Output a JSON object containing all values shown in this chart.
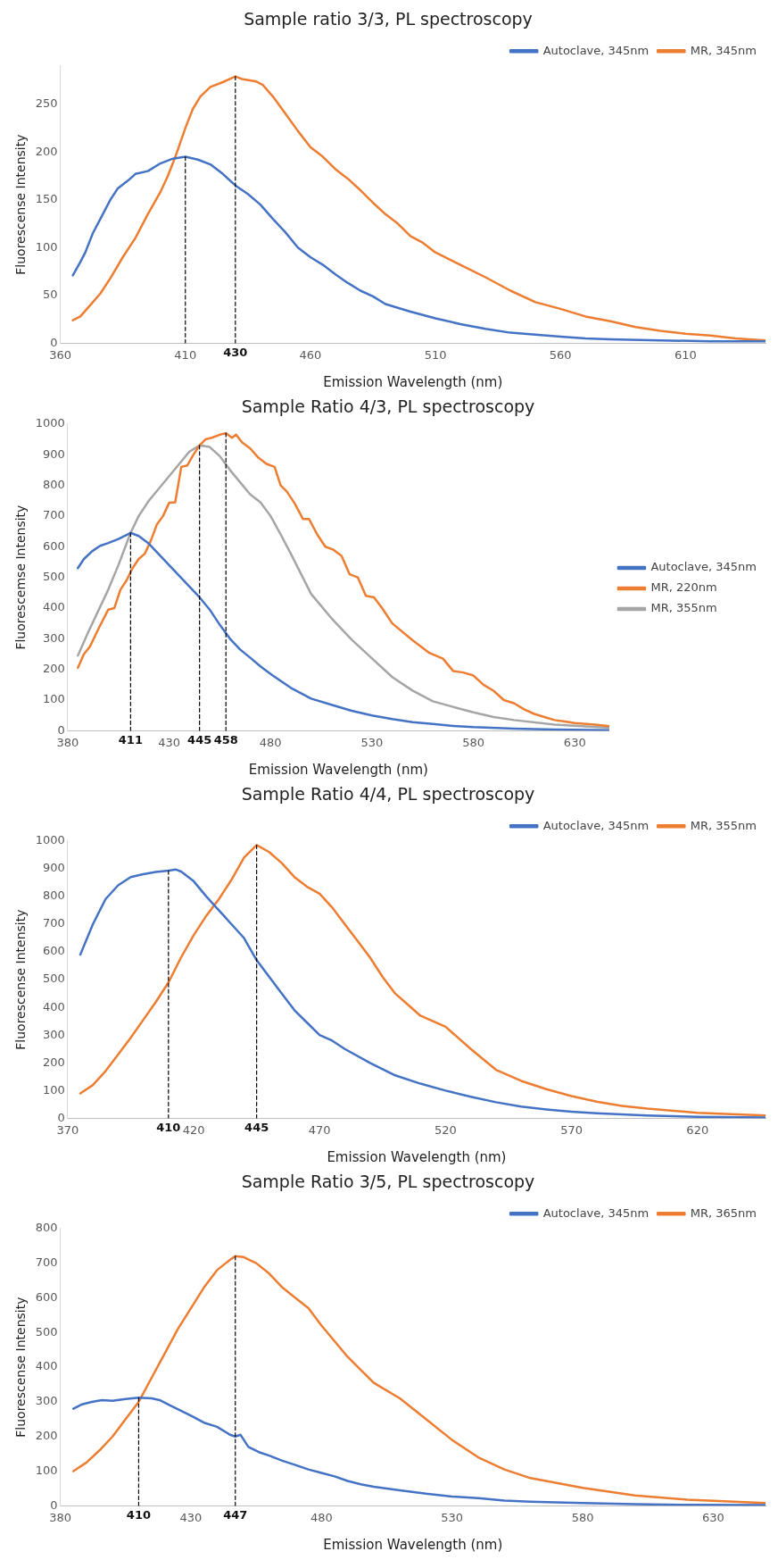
{
  "chart_data": [
    {
      "type": "line",
      "title": "Sample ratio 3/3, PL spectroscopy",
      "xlabel": "Emission Wavelength (nm)",
      "ylabel": "Fluorescense Intensity",
      "xlim": [
        360,
        642
      ],
      "xticks": [
        360,
        410,
        460,
        510,
        560,
        610
      ],
      "ylim": [
        0,
        290
      ],
      "yticks": [
        0,
        50,
        100,
        150,
        200,
        250
      ],
      "legend": "top right",
      "marker": "none",
      "series": [
        {
          "name": "Autoclave, 345nm",
          "color": "#4472c4",
          "x": [
            365,
            368,
            370,
            373,
            377,
            380,
            383,
            387,
            390,
            395,
            400,
            405,
            410,
            415,
            420,
            425,
            430,
            435,
            440,
            445,
            450,
            455,
            460,
            465,
            470,
            475,
            480,
            485,
            490,
            500,
            510,
            520,
            530,
            540,
            550,
            560,
            570,
            580,
            600,
            620,
            642
          ],
          "values": [
            71,
            85,
            95,
            115,
            135,
            150,
            162,
            170,
            177,
            180,
            188,
            193,
            195,
            192,
            187,
            177,
            165,
            156,
            145,
            130,
            116,
            100,
            90,
            82,
            72,
            63,
            55,
            49,
            41,
            33,
            26,
            20,
            15,
            11,
            9,
            7,
            5,
            4,
            3,
            2,
            2
          ]
        },
        {
          "name": "MR, 345nm",
          "color": "#ed7d31",
          "x": [
            365,
            368,
            372,
            376,
            380,
            385,
            390,
            395,
            400,
            403,
            406,
            410,
            413,
            416,
            420,
            425,
            430,
            433,
            438,
            441,
            445,
            450,
            455,
            460,
            465,
            470,
            475,
            480,
            485,
            490,
            495,
            500,
            505,
            510,
            520,
            530,
            540,
            550,
            560,
            570,
            580,
            590,
            600,
            610,
            620,
            630,
            642
          ],
          "values": [
            24,
            28,
            40,
            52,
            68,
            90,
            110,
            135,
            158,
            175,
            195,
            225,
            245,
            258,
            268,
            273,
            279,
            276,
            274,
            270,
            258,
            240,
            222,
            205,
            195,
            182,
            172,
            160,
            147,
            135,
            125,
            112,
            105,
            95,
            82,
            69,
            55,
            43,
            36,
            28,
            23,
            17,
            13,
            10,
            8,
            5,
            3
          ]
        },
        {
          "color": "#000000",
          "line_style": "dashed",
          "x": [
            410,
            410
          ],
          "values": [
            0,
            195
          ]
        },
        {
          "color": "#000000",
          "line_style": "dashed",
          "x": [
            430,
            430
          ],
          "values": [
            0,
            279
          ]
        }
      ],
      "annotations": [
        {
          "text": "430",
          "x": 430,
          "y": 0
        }
      ]
    },
    {
      "type": "line",
      "title": "Sample Ratio 4/3, PL spectroscopy",
      "xlabel": "Emission Wavelength (nm)",
      "ylabel": "Fluorescemse Intensity",
      "xlim": [
        380,
        647
      ],
      "xticks": [
        380,
        430,
        480,
        530,
        580,
        630
      ],
      "ylim": [
        0,
        1000
      ],
      "yticks": [
        0,
        100,
        200,
        300,
        400,
        500,
        600,
        700,
        800,
        900,
        1000
      ],
      "legend": "right",
      "marker": "none",
      "series": [
        {
          "name": "Autoclave, 345nm",
          "color": "#4472c4",
          "x": [
            385,
            388,
            392,
            396,
            400,
            405,
            411,
            415,
            420,
            425,
            430,
            435,
            440,
            445,
            450,
            455,
            460,
            465,
            470,
            475,
            480,
            490,
            500,
            510,
            520,
            530,
            540,
            550,
            560,
            570,
            580,
            600,
            620,
            647
          ],
          "values": [
            530,
            560,
            585,
            603,
            612,
            625,
            645,
            635,
            610,
            575,
            540,
            505,
            470,
            435,
            395,
            345,
            300,
            265,
            238,
            210,
            185,
            140,
            105,
            85,
            65,
            50,
            38,
            28,
            22,
            16,
            12,
            7,
            4,
            2
          ]
        },
        {
          "name": "MR, 220nm",
          "color": "#ed7d31",
          "x": [
            385,
            388,
            391,
            395,
            400,
            403,
            406,
            409,
            412,
            415,
            418,
            421,
            424,
            427,
            430,
            433,
            436,
            439,
            442,
            445,
            448,
            451,
            455,
            458,
            461,
            463,
            466,
            470,
            474,
            478,
            482,
            485,
            488,
            492,
            496,
            499,
            503,
            507,
            511,
            515,
            519,
            523,
            527,
            531,
            535,
            540,
            550,
            558,
            565,
            570,
            575,
            580,
            585,
            590,
            595,
            600,
            605,
            610,
            615,
            620,
            625,
            630,
            640,
            647
          ],
          "values": [
            205,
            250,
            275,
            330,
            395,
            400,
            460,
            490,
            530,
            560,
            577,
            620,
            673,
            700,
            743,
            745,
            860,
            865,
            900,
            930,
            950,
            955,
            965,
            970,
            955,
            965,
            940,
            920,
            890,
            870,
            860,
            800,
            780,
            740,
            690,
            690,
            640,
            600,
            590,
            570,
            510,
            500,
            440,
            435,
            400,
            350,
            295,
            255,
            235,
            195,
            190,
            180,
            150,
            130,
            100,
            90,
            70,
            55,
            45,
            35,
            30,
            25,
            20,
            15
          ]
        },
        {
          "name": "MR, 355nm",
          "color": "#a5a5a5",
          "x": [
            385,
            390,
            395,
            400,
            405,
            411,
            415,
            420,
            425,
            430,
            435,
            440,
            445,
            450,
            455,
            460,
            465,
            470,
            475,
            480,
            485,
            490,
            500,
            510,
            520,
            530,
            540,
            550,
            560,
            570,
            580,
            590,
            600,
            620,
            647
          ],
          "values": [
            245,
            320,
            390,
            460,
            540,
            645,
            700,
            750,
            790,
            830,
            870,
            910,
            930,
            925,
            895,
            850,
            810,
            770,
            745,
            700,
            640,
            577,
            446,
            367,
            297,
            236,
            175,
            131,
            96,
            78,
            60,
            45,
            35,
            20,
            10
          ]
        },
        {
          "color": "#000000",
          "line_style": "dashed",
          "x": [
            411,
            411
          ],
          "values": [
            0,
            645
          ]
        },
        {
          "color": "#000000",
          "line_style": "dashed",
          "x": [
            445,
            445
          ],
          "values": [
            0,
            930
          ]
        },
        {
          "color": "#000000",
          "line_style": "dashed",
          "x": [
            458,
            458
          ],
          "values": [
            0,
            970
          ]
        }
      ],
      "annotations": [
        {
          "text": "411",
          "x": 411,
          "y": 0
        },
        {
          "text": "445",
          "x": 445,
          "y": 0
        },
        {
          "text": "458",
          "x": 458,
          "y": 0
        }
      ]
    },
    {
      "type": "line",
      "title": "Sample Ratio 4/4, PL spectroscopy",
      "xlabel": "Emission Wavelength (nm)",
      "ylabel": "Fluorescense Intensity",
      "xlim": [
        370,
        647
      ],
      "xticks": [
        370,
        420,
        470,
        520,
        570,
        620
      ],
      "ylim": [
        0,
        1000
      ],
      "yticks": [
        0,
        100,
        200,
        300,
        400,
        500,
        600,
        700,
        800,
        900,
        1000
      ],
      "legend": "top right",
      "marker": "none",
      "series": [
        {
          "name": "Autoclave, 345nm",
          "color": "#4472c4",
          "x": [
            375,
            380,
            385,
            390,
            395,
            400,
            405,
            410,
            413,
            415,
            420,
            425,
            430,
            435,
            440,
            445,
            450,
            455,
            460,
            465,
            470,
            475,
            480,
            490,
            500,
            510,
            520,
            530,
            540,
            550,
            560,
            570,
            580,
            600,
            620,
            647
          ],
          "values": [
            590,
            700,
            790,
            840,
            870,
            880,
            888,
            893,
            897,
            890,
            855,
            800,
            750,
            700,
            650,
            570,
            510,
            450,
            390,
            345,
            300,
            280,
            250,
            200,
            155,
            125,
            100,
            78,
            58,
            42,
            32,
            24,
            18,
            10,
            5,
            3
          ]
        },
        {
          "name": "MR, 355nm",
          "color": "#ed7d31",
          "x": [
            375,
            380,
            385,
            390,
            395,
            400,
            405,
            410,
            415,
            420,
            425,
            430,
            435,
            440,
            445,
            450,
            455,
            460,
            465,
            470,
            475,
            480,
            485,
            490,
            495,
            500,
            505,
            510,
            520,
            530,
            540,
            550,
            560,
            570,
            580,
            590,
            600,
            620,
            647
          ],
          "values": [
            90,
            120,
            170,
            230,
            290,
            355,
            420,
            490,
            580,
            660,
            730,
            790,
            860,
            940,
            985,
            960,
            920,
            870,
            835,
            810,
            760,
            700,
            640,
            580,
            510,
            450,
            410,
            370,
            330,
            250,
            175,
            135,
            105,
            80,
            60,
            45,
            35,
            20,
            10
          ]
        },
        {
          "color": "#000000",
          "line_style": "dashed",
          "x": [
            410,
            410
          ],
          "values": [
            0,
            893
          ]
        },
        {
          "color": "#000000",
          "line_style": "dashed",
          "x": [
            445,
            445
          ],
          "values": [
            0,
            985
          ]
        }
      ],
      "annotations": [
        {
          "text": "410",
          "x": 410,
          "y": 0
        },
        {
          "text": "445",
          "x": 445,
          "y": 0
        }
      ]
    },
    {
      "type": "line",
      "title": "Sample Ratio 3/5, PL spectroscopy",
      "xlabel": "Emission Wavelength (nm)",
      "ylabel": "Fluorescense Intensity",
      "xlim": [
        380,
        650
      ],
      "xticks": [
        380,
        430,
        480,
        530,
        580,
        630
      ],
      "ylim": [
        0,
        800
      ],
      "yticks": [
        0,
        100,
        200,
        300,
        400,
        500,
        600,
        700,
        800
      ],
      "legend": "top right",
      "marker": "none",
      "series": [
        {
          "name": "Autoclave, 345nm",
          "color": "#4472c4",
          "x": [
            385,
            388,
            392,
            396,
            400,
            405,
            410,
            415,
            418,
            422,
            426,
            430,
            435,
            440,
            445,
            447,
            449,
            452,
            456,
            460,
            465,
            470,
            475,
            480,
            485,
            490,
            495,
            500,
            510,
            520,
            530,
            540,
            550,
            560,
            570,
            580,
            600,
            620,
            650
          ],
          "values": [
            280,
            292,
            300,
            305,
            303,
            308,
            312,
            310,
            305,
            290,
            275,
            260,
            240,
            228,
            205,
            200,
            205,
            170,
            155,
            145,
            130,
            118,
            105,
            95,
            85,
            72,
            62,
            55,
            45,
            35,
            27,
            22,
            15,
            12,
            10,
            8,
            5,
            3,
            2
          ]
        },
        {
          "name": "MR, 365nm",
          "color": "#ed7d31",
          "x": [
            385,
            390,
            395,
            400,
            405,
            410,
            415,
            420,
            425,
            430,
            435,
            440,
            445,
            447,
            450,
            455,
            460,
            465,
            470,
            475,
            480,
            490,
            500,
            510,
            520,
            530,
            540,
            550,
            560,
            580,
            600,
            620,
            650
          ],
          "values": [
            100,
            125,
            160,
            200,
            250,
            300,
            370,
            440,
            510,
            570,
            630,
            680,
            710,
            720,
            718,
            700,
            670,
            630,
            600,
            570,
            520,
            430,
            355,
            310,
            250,
            190,
            140,
            105,
            80,
            52,
            30,
            18,
            8
          ]
        },
        {
          "color": "#000000",
          "line_style": "dashed",
          "x": [
            410,
            410
          ],
          "values": [
            0,
            312
          ]
        },
        {
          "color": "#000000",
          "line_style": "dashed",
          "x": [
            447,
            447
          ],
          "values": [
            0,
            720
          ]
        }
      ],
      "annotations": [
        {
          "text": "410",
          "x": 410,
          "y": 0
        },
        {
          "text": "447",
          "x": 447,
          "y": 0
        }
      ]
    }
  ]
}
